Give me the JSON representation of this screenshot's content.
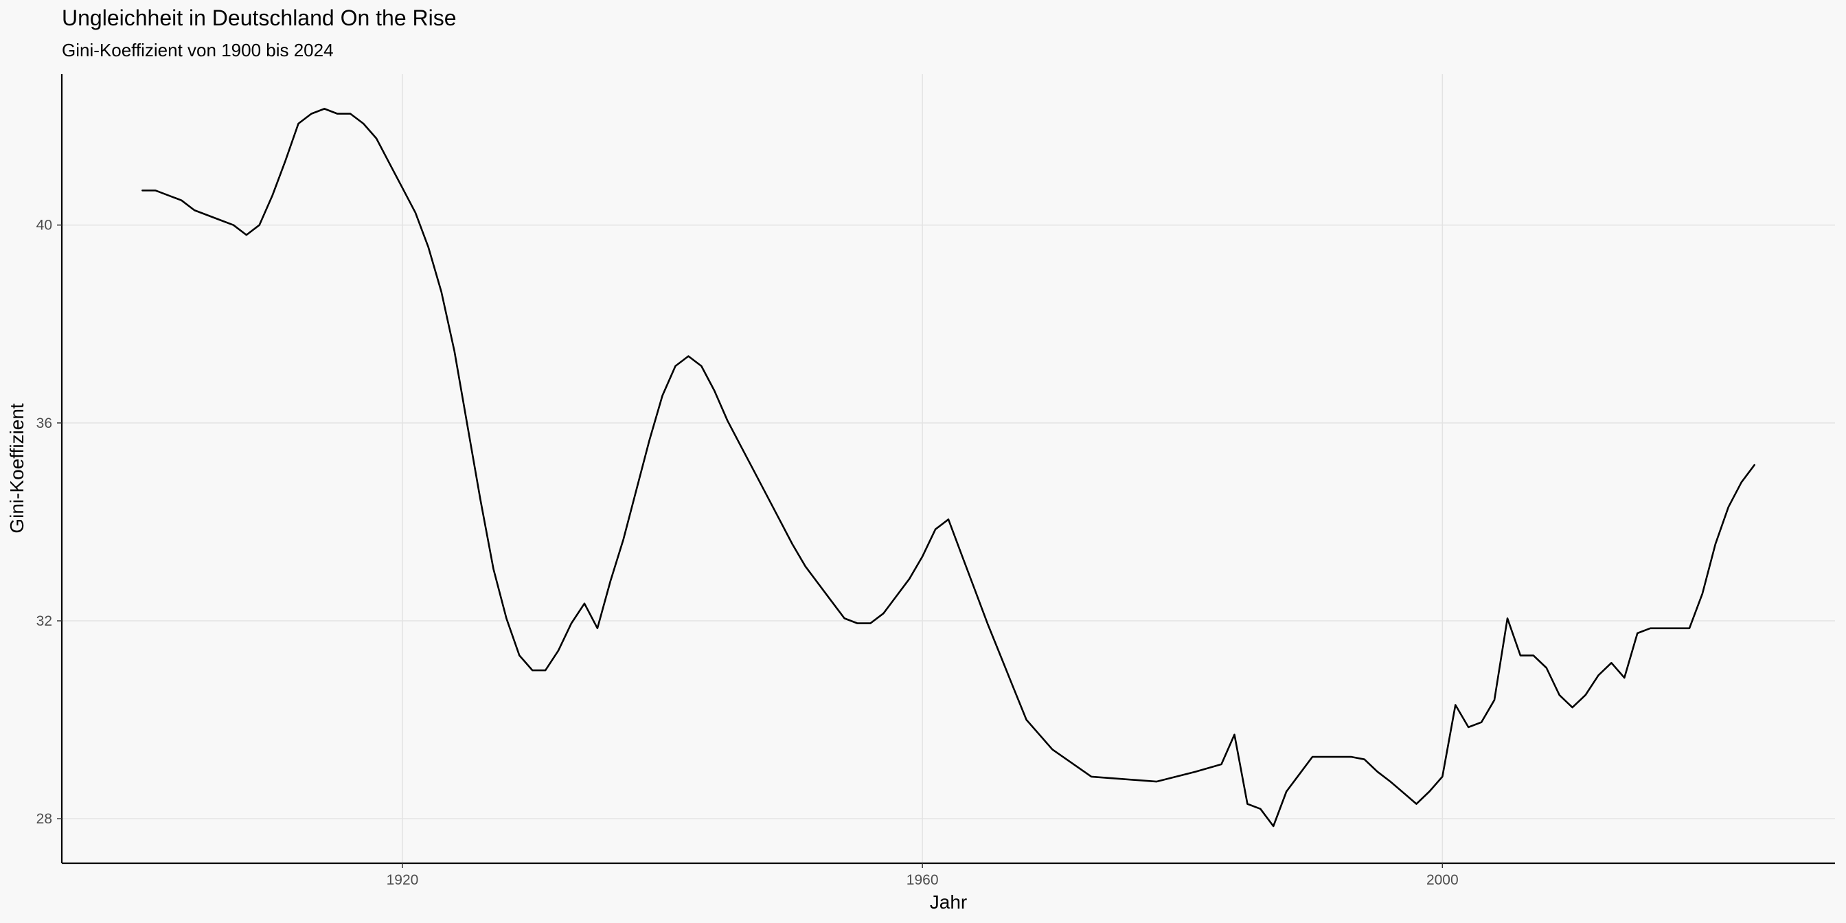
{
  "chart_data": {
    "type": "line",
    "title": "Ungleichheit in Deutschland On the Rise",
    "subtitle": "Gini-Koeffizient von 1900 bis 2024",
    "xlabel": "Jahr",
    "ylabel": "Gini-Koeffizient",
    "xlim": [
      1893.8,
      2030.2
    ],
    "ylim": [
      27.1,
      43.05
    ],
    "x_ticks": [
      1920,
      1960,
      2000
    ],
    "y_ticks": [
      28,
      32,
      36,
      40
    ],
    "grid": true,
    "legend": "none",
    "line_color": "#000000",
    "series": [
      {
        "x": [
          1900,
          1901,
          1903,
          1904,
          1906,
          1907,
          1908,
          1909,
          1910,
          1911,
          1912,
          1913,
          1914,
          1915,
          1916,
          1917,
          1918,
          1919,
          1920,
          1921,
          1922,
          1923,
          1924,
          1925,
          1926,
          1927,
          1928,
          1929,
          1930,
          1931,
          1932,
          1933,
          1934,
          1935,
          1936,
          1937,
          1938,
          1939,
          1940,
          1941,
          1942,
          1943,
          1944,
          1945,
          1946,
          1947,
          1948,
          1949,
          1950,
          1951,
          1952,
          1953,
          1954,
          1955,
          1956,
          1957,
          1958,
          1959,
          1960,
          1961,
          1962,
          1963,
          1964,
          1965,
          1966,
          1967,
          1968,
          1969,
          1970,
          1973,
          1978,
          1981,
          1983,
          1984,
          1985,
          1986,
          1987,
          1988,
          1989,
          1990,
          1991,
          1993,
          1994,
          1995,
          1996,
          1998,
          1999,
          2000,
          2001,
          2002,
          2003,
          2004,
          2005,
          2006,
          2007,
          2008,
          2009,
          2010,
          2011,
          2012,
          2013,
          2014,
          2015,
          2016,
          2017,
          2018,
          2019,
          2020,
          2021,
          2022,
          2023,
          2024
        ],
        "y": [
          40.7,
          40.7,
          40.5,
          40.3,
          40.1,
          40.0,
          39.8,
          40.0,
          40.6,
          41.3,
          42.05,
          42.25,
          42.35,
          42.25,
          42.25,
          42.05,
          41.75,
          41.25,
          40.75,
          40.25,
          39.55,
          38.65,
          37.45,
          35.95,
          34.45,
          33.05,
          32.05,
          31.3,
          31.0,
          31.0,
          31.4,
          31.95,
          32.35,
          31.85,
          32.8,
          33.65,
          34.65,
          35.65,
          36.55,
          37.15,
          37.35,
          37.15,
          36.65,
          36.05,
          35.55,
          35.05,
          34.55,
          34.05,
          33.55,
          33.1,
          32.75,
          32.4,
          32.05,
          31.95,
          31.95,
          32.15,
          32.5,
          32.85,
          33.3,
          33.85,
          34.05,
          33.35,
          32.65,
          31.95,
          31.3,
          30.65,
          30.0,
          29.7,
          29.4,
          28.85,
          28.75,
          28.95,
          29.1,
          29.7,
          28.3,
          28.2,
          27.85,
          28.55,
          28.9,
          29.25,
          29.25,
          29.25,
          29.2,
          28.95,
          28.75,
          28.3,
          28.55,
          28.85,
          30.3,
          29.85,
          29.95,
          30.4,
          32.05,
          31.3,
          31.3,
          31.05,
          30.5,
          30.25,
          30.5,
          30.9,
          31.15,
          30.85,
          31.75,
          31.85,
          31.85,
          31.85,
          31.85,
          32.55,
          33.55,
          34.3,
          34.8,
          35.15
        ]
      }
    ]
  }
}
